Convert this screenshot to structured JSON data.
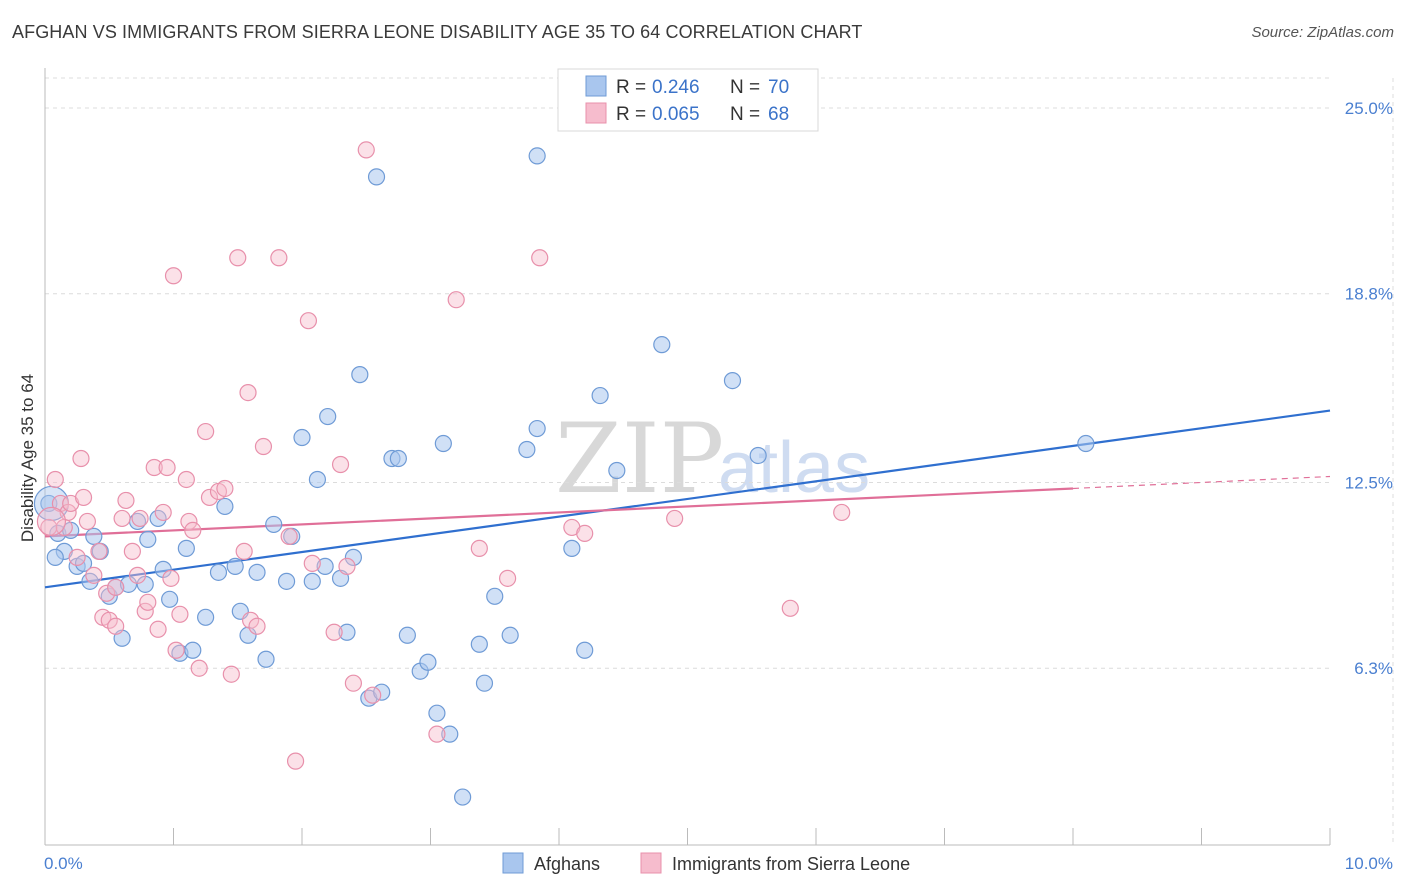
{
  "title": "AFGHAN VS IMMIGRANTS FROM SIERRA LEONE DISABILITY AGE 35 TO 64 CORRELATION CHART",
  "source": "Source: ZipAtlas.com",
  "watermark": {
    "part1": "ZIP",
    "part2": "atlas"
  },
  "legend": {
    "r_label": "R =",
    "n_label": "N =",
    "rows": [
      {
        "r": "0.246",
        "n": "70"
      },
      {
        "r": "0.065",
        "n": "68"
      }
    ]
  },
  "colors": {
    "blue_fill": "#a9c6ee",
    "blue_stroke": "#6f9bd6",
    "blue_line": "#2f6fcf",
    "pink_fill": "#f6bccd",
    "pink_stroke": "#e890ab",
    "pink_line": "#e06f98",
    "grid": "#dcdcdc",
    "tick_text": "#4a7fd0"
  },
  "chart_data": {
    "type": "scatter",
    "title": "AFGHAN VS IMMIGRANTS FROM SIERRA LEONE DISABILITY AGE 35 TO 64 CORRELATION CHART",
    "xlabel": "",
    "ylabel": "Disability Age 35 to 64",
    "xlim": [
      0,
      10
    ],
    "ylim": [
      0.4,
      26
    ],
    "x_tick_labels": [
      "0.0%",
      "10.0%"
    ],
    "y_ticks": [
      6.3,
      12.5,
      18.8,
      25.0
    ],
    "y_tick_labels": [
      "6.3%",
      "12.5%",
      "18.8%",
      "25.0%"
    ],
    "grid": true,
    "legend_placement": "top-center",
    "series": [
      {
        "name": "Afghans",
        "R": 0.246,
        "N": 70,
        "trend": {
          "x": [
            0,
            10
          ],
          "y": [
            9.0,
            14.9
          ]
        },
        "points": [
          [
            0.03,
            11.8
          ],
          [
            0.1,
            10.8
          ],
          [
            0.15,
            10.2
          ],
          [
            0.2,
            10.9
          ],
          [
            0.25,
            9.7
          ],
          [
            0.3,
            9.8
          ],
          [
            0.38,
            10.7
          ],
          [
            0.43,
            10.2
          ],
          [
            0.5,
            8.7
          ],
          [
            0.55,
            9.0
          ],
          [
            0.6,
            7.3
          ],
          [
            0.65,
            9.1
          ],
          [
            0.72,
            11.2
          ],
          [
            0.78,
            9.1
          ],
          [
            0.8,
            10.6
          ],
          [
            0.88,
            11.3
          ],
          [
            0.92,
            9.6
          ],
          [
            0.97,
            8.6
          ],
          [
            1.05,
            6.8
          ],
          [
            1.1,
            10.3
          ],
          [
            1.15,
            6.9
          ],
          [
            1.25,
            8.0
          ],
          [
            1.35,
            9.5
          ],
          [
            1.4,
            11.7
          ],
          [
            1.48,
            9.7
          ],
          [
            1.52,
            8.2
          ],
          [
            1.58,
            7.4
          ],
          [
            1.65,
            9.5
          ],
          [
            1.72,
            6.6
          ],
          [
            1.78,
            11.1
          ],
          [
            1.88,
            9.2
          ],
          [
            1.92,
            10.7
          ],
          [
            2.0,
            14.0
          ],
          [
            2.08,
            9.2
          ],
          [
            2.12,
            12.6
          ],
          [
            2.18,
            9.7
          ],
          [
            2.2,
            14.7
          ],
          [
            2.3,
            9.3
          ],
          [
            2.35,
            7.5
          ],
          [
            2.4,
            10.0
          ],
          [
            2.45,
            16.1
          ],
          [
            2.52,
            5.3
          ],
          [
            2.58,
            22.7
          ],
          [
            2.62,
            5.5
          ],
          [
            2.7,
            13.3
          ],
          [
            2.75,
            13.3
          ],
          [
            2.82,
            7.4
          ],
          [
            2.92,
            6.2
          ],
          [
            2.98,
            6.5
          ],
          [
            3.05,
            4.8
          ],
          [
            3.1,
            13.8
          ],
          [
            3.15,
            4.1
          ],
          [
            3.25,
            2.0
          ],
          [
            3.38,
            7.1
          ],
          [
            3.42,
            5.8
          ],
          [
            3.5,
            8.7
          ],
          [
            3.62,
            7.4
          ],
          [
            3.75,
            13.6
          ],
          [
            3.83,
            14.3
          ],
          [
            3.83,
            23.4
          ],
          [
            4.1,
            10.3
          ],
          [
            4.2,
            6.9
          ],
          [
            4.32,
            15.4
          ],
          [
            4.45,
            12.9
          ],
          [
            4.8,
            17.1
          ],
          [
            5.35,
            15.9
          ],
          [
            5.55,
            13.4
          ],
          [
            8.1,
            13.8
          ],
          [
            0.08,
            10.0
          ],
          [
            0.35,
            9.2
          ]
        ]
      },
      {
        "name": "Immigrants from Sierra Leone",
        "R": 0.065,
        "N": 68,
        "trend": {
          "x": [
            0,
            8
          ],
          "y": [
            10.7,
            12.3
          ]
        },
        "trend_extension": {
          "x": [
            8,
            10
          ],
          "y": [
            12.3,
            12.7
          ]
        },
        "points": [
          [
            0.03,
            11.0
          ],
          [
            0.08,
            12.6
          ],
          [
            0.12,
            11.8
          ],
          [
            0.18,
            11.5
          ],
          [
            0.2,
            11.8
          ],
          [
            0.25,
            10.0
          ],
          [
            0.28,
            13.3
          ],
          [
            0.3,
            12.0
          ],
          [
            0.33,
            11.2
          ],
          [
            0.38,
            9.4
          ],
          [
            0.42,
            10.2
          ],
          [
            0.45,
            8.0
          ],
          [
            0.48,
            8.8
          ],
          [
            0.5,
            7.9
          ],
          [
            0.55,
            7.7
          ],
          [
            0.6,
            11.3
          ],
          [
            0.63,
            11.9
          ],
          [
            0.68,
            10.2
          ],
          [
            0.72,
            9.4
          ],
          [
            0.74,
            11.3
          ],
          [
            0.78,
            8.2
          ],
          [
            0.8,
            8.5
          ],
          [
            0.85,
            13.0
          ],
          [
            0.88,
            7.6
          ],
          [
            0.92,
            11.5
          ],
          [
            0.95,
            13.0
          ],
          [
            0.98,
            9.3
          ],
          [
            1.02,
            6.9
          ],
          [
            1.05,
            8.1
          ],
          [
            1.1,
            12.6
          ],
          [
            1.12,
            11.2
          ],
          [
            1.15,
            10.9
          ],
          [
            1.2,
            6.3
          ],
          [
            1.25,
            14.2
          ],
          [
            1.28,
            12.0
          ],
          [
            1.35,
            12.2
          ],
          [
            1.4,
            12.3
          ],
          [
            1.45,
            6.1
          ],
          [
            1.5,
            20.0
          ],
          [
            1.55,
            10.2
          ],
          [
            1.58,
            15.5
          ],
          [
            1.6,
            7.9
          ],
          [
            1.65,
            7.7
          ],
          [
            1.7,
            13.7
          ],
          [
            1.82,
            20.0
          ],
          [
            1.9,
            10.7
          ],
          [
            1.95,
            3.2
          ],
          [
            2.05,
            17.9
          ],
          [
            2.08,
            9.8
          ],
          [
            2.25,
            7.5
          ],
          [
            2.3,
            13.1
          ],
          [
            2.35,
            9.7
          ],
          [
            2.4,
            5.8
          ],
          [
            2.5,
            23.6
          ],
          [
            2.55,
            5.4
          ],
          [
            3.05,
            4.1
          ],
          [
            3.2,
            18.6
          ],
          [
            3.38,
            10.3
          ],
          [
            3.6,
            9.3
          ],
          [
            3.85,
            20.0
          ],
          [
            4.1,
            11.0
          ],
          [
            4.2,
            10.8
          ],
          [
            4.9,
            11.3
          ],
          [
            5.8,
            8.3
          ],
          [
            6.2,
            11.5
          ],
          [
            1.0,
            19.4
          ],
          [
            0.15,
            11.0
          ],
          [
            0.55,
            9.0
          ]
        ]
      }
    ]
  },
  "bottom_legend": [
    "Afghans",
    "Immigrants from Sierra Leone"
  ]
}
